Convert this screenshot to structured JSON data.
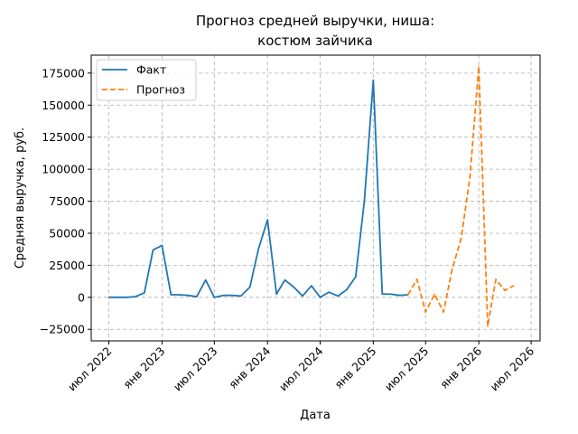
{
  "chart_data": {
    "type": "line",
    "title_lines": [
      "Прогноз средней выручки, ниша:",
      "костюм зайчика"
    ],
    "xlabel": "Дата",
    "ylabel": "Средняя выручка, руб.",
    "x_ticks": [
      {
        "date": "2022-07-01",
        "label": "июл 2022"
      },
      {
        "date": "2023-01-01",
        "label": "янв 2023"
      },
      {
        "date": "2023-07-01",
        "label": "июл 2023"
      },
      {
        "date": "2024-01-01",
        "label": "янв 2024"
      },
      {
        "date": "2024-07-01",
        "label": "июл 2024"
      },
      {
        "date": "2025-01-01",
        "label": "янв 2025"
      },
      {
        "date": "2025-07-01",
        "label": "июл 2025"
      },
      {
        "date": "2026-01-01",
        "label": "янв 2026"
      },
      {
        "date": "2026-07-01",
        "label": "июл 2026"
      }
    ],
    "y_ticks": [
      {
        "value": -25000,
        "label": "−25000"
      },
      {
        "value": 0,
        "label": "0"
      },
      {
        "value": 25000,
        "label": "25000"
      },
      {
        "value": 50000,
        "label": "50000"
      },
      {
        "value": 75000,
        "label": "75000"
      },
      {
        "value": 100000,
        "label": "100000"
      },
      {
        "value": 125000,
        "label": "125000"
      },
      {
        "value": 150000,
        "label": "150000"
      },
      {
        "value": 175000,
        "label": "175000"
      }
    ],
    "xlim": [
      "2022-05-01",
      "2026-08-01"
    ],
    "ylim": [
      -34000,
      189000
    ],
    "grid": true,
    "legend_position": "top-left",
    "series": [
      {
        "name": "Факт",
        "color": "#1f77b4",
        "style": "solid",
        "points": [
          {
            "x": "2022-07-01",
            "y": 0
          },
          {
            "x": "2022-08-01",
            "y": 0
          },
          {
            "x": "2022-09-01",
            "y": 0
          },
          {
            "x": "2022-10-01",
            "y": 500
          },
          {
            "x": "2022-11-01",
            "y": 3500
          },
          {
            "x": "2022-12-01",
            "y": 37000
          },
          {
            "x": "2023-01-01",
            "y": 40500
          },
          {
            "x": "2023-02-01",
            "y": 2000
          },
          {
            "x": "2023-03-01",
            "y": 2000
          },
          {
            "x": "2023-04-01",
            "y": 1500
          },
          {
            "x": "2023-05-01",
            "y": 500
          },
          {
            "x": "2023-06-01",
            "y": 13500
          },
          {
            "x": "2023-07-01",
            "y": 0
          },
          {
            "x": "2023-08-01",
            "y": 1500
          },
          {
            "x": "2023-09-01",
            "y": 1500
          },
          {
            "x": "2023-10-01",
            "y": 1000
          },
          {
            "x": "2023-11-01",
            "y": 8000
          },
          {
            "x": "2023-12-01",
            "y": 38000
          },
          {
            "x": "2024-01-01",
            "y": 60500
          },
          {
            "x": "2024-02-01",
            "y": 2500
          },
          {
            "x": "2024-03-01",
            "y": 13500
          },
          {
            "x": "2024-04-01",
            "y": 8000
          },
          {
            "x": "2024-05-01",
            "y": 1000
          },
          {
            "x": "2024-06-01",
            "y": 9000
          },
          {
            "x": "2024-07-01",
            "y": 0
          },
          {
            "x": "2024-08-01",
            "y": 4000
          },
          {
            "x": "2024-09-01",
            "y": 1000
          },
          {
            "x": "2024-10-01",
            "y": 6000
          },
          {
            "x": "2024-11-01",
            "y": 16000
          },
          {
            "x": "2024-12-01",
            "y": 75000
          },
          {
            "x": "2025-01-01",
            "y": 169500
          },
          {
            "x": "2025-02-01",
            "y": 2500
          },
          {
            "x": "2025-03-01",
            "y": 2500
          },
          {
            "x": "2025-04-01",
            "y": 1500
          },
          {
            "x": "2025-05-01",
            "y": 2000
          }
        ]
      },
      {
        "name": "Прогноз",
        "color": "#ff7f0e",
        "style": "dashed",
        "points": [
          {
            "x": "2025-05-01",
            "y": 2000
          },
          {
            "x": "2025-06-01",
            "y": 14000
          },
          {
            "x": "2025-07-01",
            "y": -11500
          },
          {
            "x": "2025-08-01",
            "y": 2500
          },
          {
            "x": "2025-09-01",
            "y": -11500
          },
          {
            "x": "2025-10-01",
            "y": 22000
          },
          {
            "x": "2025-11-01",
            "y": 46000
          },
          {
            "x": "2025-12-01",
            "y": 93000
          },
          {
            "x": "2026-01-01",
            "y": 180000
          },
          {
            "x": "2026-02-01",
            "y": -22500
          },
          {
            "x": "2026-03-01",
            "y": 14000
          },
          {
            "x": "2026-04-01",
            "y": 5500
          },
          {
            "x": "2026-05-01",
            "y": 9000
          }
        ]
      }
    ]
  }
}
